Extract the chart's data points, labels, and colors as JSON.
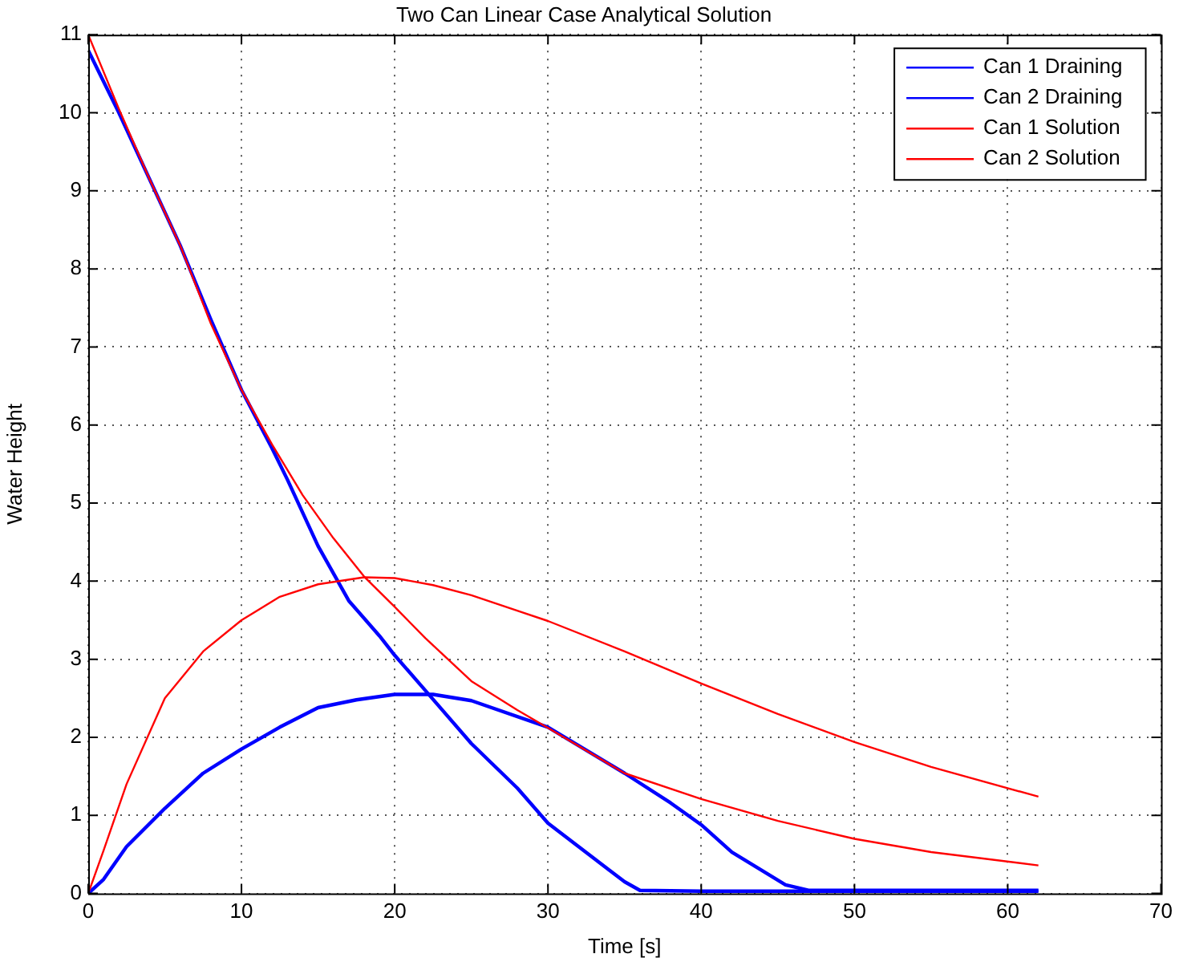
{
  "chart_data": {
    "type": "line",
    "title": "Two Can Linear Case Analytical Solution",
    "xlabel": "Time [s]",
    "ylabel": "Water Height",
    "xlim": [
      0,
      70
    ],
    "xticks": [
      0,
      10,
      20,
      30,
      40,
      50,
      60,
      70
    ],
    "ylim": [
      0,
      11
    ],
    "yticks": [
      0,
      1,
      2,
      3,
      4,
      5,
      6,
      7,
      8,
      9,
      10,
      11
    ],
    "grid": true,
    "legend": "top right",
    "marker": "none",
    "line_style": "solid",
    "series": [
      {
        "name": "Can 1 Draining",
        "color": "#0000ff",
        "x": [
          0,
          2,
          4,
          6,
          8,
          10,
          12,
          13,
          15,
          17,
          19,
          20,
          22,
          25,
          28,
          30,
          32,
          34,
          35,
          36,
          40,
          50,
          62
        ],
        "values": [
          10.8,
          10.0,
          9.15,
          8.3,
          7.35,
          6.45,
          5.7,
          5.3,
          4.45,
          3.75,
          3.3,
          3.05,
          2.6,
          1.92,
          1.35,
          0.9,
          0.6,
          0.3,
          0.15,
          0.04,
          0.03,
          0.03,
          0.03
        ]
      },
      {
        "name": "Can 2 Draining",
        "color": "#0000ff",
        "x": [
          0,
          1,
          2.5,
          5,
          7.5,
          10,
          12.5,
          15,
          17.5,
          20,
          22.5,
          25,
          30,
          35,
          38,
          40,
          42,
          44,
          45.5,
          47,
          55,
          62
        ],
        "values": [
          0,
          0.18,
          0.6,
          1.09,
          1.54,
          1.85,
          2.13,
          2.38,
          2.48,
          2.55,
          2.55,
          2.47,
          2.13,
          1.54,
          1.16,
          0.88,
          0.53,
          0.29,
          0.11,
          0.04,
          0.04,
          0.04
        ]
      },
      {
        "name": "Can 1 Solution",
        "color": "#ff0000",
        "x": [
          0,
          2,
          4,
          6,
          8,
          10,
          12,
          14,
          16,
          18,
          20,
          22,
          25,
          28,
          30,
          35,
          40,
          45,
          50,
          55,
          62
        ],
        "values": [
          11,
          10.05,
          9.15,
          8.3,
          7.3,
          6.45,
          5.75,
          5.1,
          4.55,
          4.06,
          3.67,
          3.27,
          2.72,
          2.35,
          2.12,
          1.54,
          1.21,
          0.93,
          0.7,
          0.53,
          0.36
        ]
      },
      {
        "name": "Can 2 Solution",
        "color": "#ff0000",
        "x": [
          0,
          1,
          2.5,
          5,
          7.5,
          10,
          12.5,
          15,
          18,
          20,
          22.5,
          25,
          30,
          35,
          40,
          45,
          50,
          55,
          62
        ],
        "values": [
          0,
          0.55,
          1.4,
          2.5,
          3.1,
          3.5,
          3.8,
          3.96,
          4.05,
          4.04,
          3.95,
          3.82,
          3.49,
          3.1,
          2.69,
          2.3,
          1.94,
          1.62,
          1.24
        ]
      }
    ]
  }
}
